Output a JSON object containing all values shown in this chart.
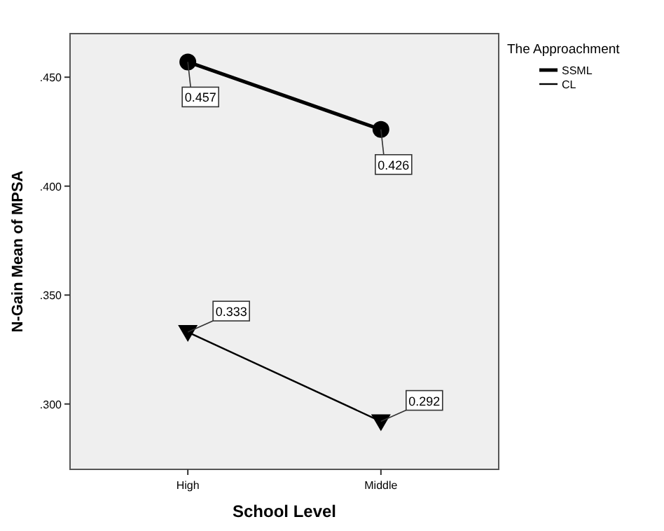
{
  "chart_data": {
    "type": "line",
    "xlabel": "School Level",
    "ylabel": "N-Gain Mean of MPSA",
    "legend_title": "The Approachment",
    "legend": "right",
    "categories": [
      "High",
      "Middle"
    ],
    "series": [
      {
        "name": "SSML",
        "color": "#000000",
        "values": [
          0.457,
          0.426
        ],
        "marker": "circle",
        "line_style": "solid"
      },
      {
        "name": "CL",
        "color": "#000000",
        "values": [
          0.333,
          0.292
        ],
        "marker": "triangle",
        "line_style": "solid"
      }
    ],
    "ylim": [
      0.27,
      0.47
    ],
    "yticks": [
      {
        "value": 0.3,
        "label": ".300"
      },
      {
        "value": 0.35,
        "label": ".350"
      },
      {
        "value": 0.4,
        "label": ".400"
      },
      {
        "value": 0.45,
        "label": ".450"
      }
    ],
    "grid": false,
    "data_labels": true
  }
}
